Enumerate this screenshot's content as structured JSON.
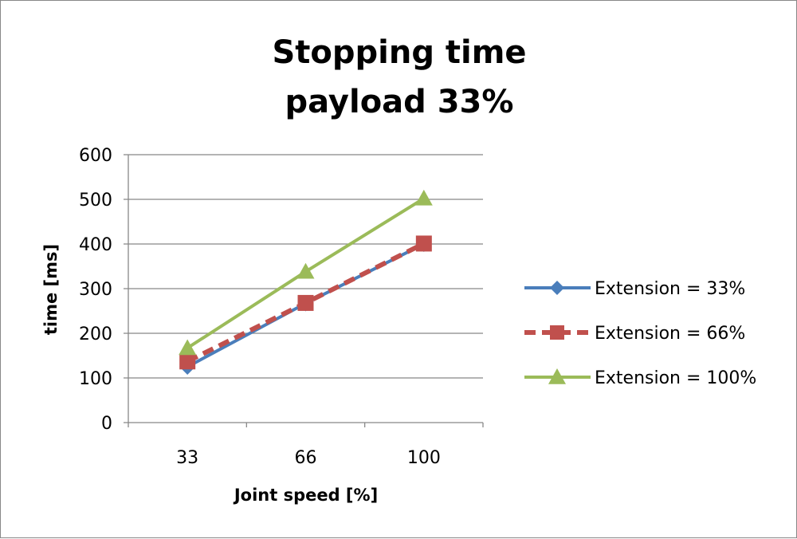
{
  "chart_data": {
    "type": "line",
    "title": "Stopping time",
    "subtitle": "payload 33%",
    "xlabel": "Joint speed [%]",
    "ylabel": "time [ms]",
    "categories": [
      "33",
      "66",
      "100"
    ],
    "ylim": [
      0,
      600
    ],
    "yticks": [
      0,
      100,
      200,
      300,
      400,
      500,
      600
    ],
    "grid": true,
    "legend_position": "right",
    "series": [
      {
        "name": "Extension = 33%",
        "values": [
          125,
          267,
          400
        ],
        "color": "#4a7ebb",
        "marker": "diamond",
        "dash": "solid"
      },
      {
        "name": "Extension = 66%",
        "values": [
          137,
          268,
          401
        ],
        "color": "#c0504d",
        "marker": "square",
        "dash": "dashed"
      },
      {
        "name": "Extension = 100%",
        "values": [
          167,
          338,
          502
        ],
        "color": "#9bbb59",
        "marker": "triangle",
        "dash": "solid"
      }
    ]
  }
}
